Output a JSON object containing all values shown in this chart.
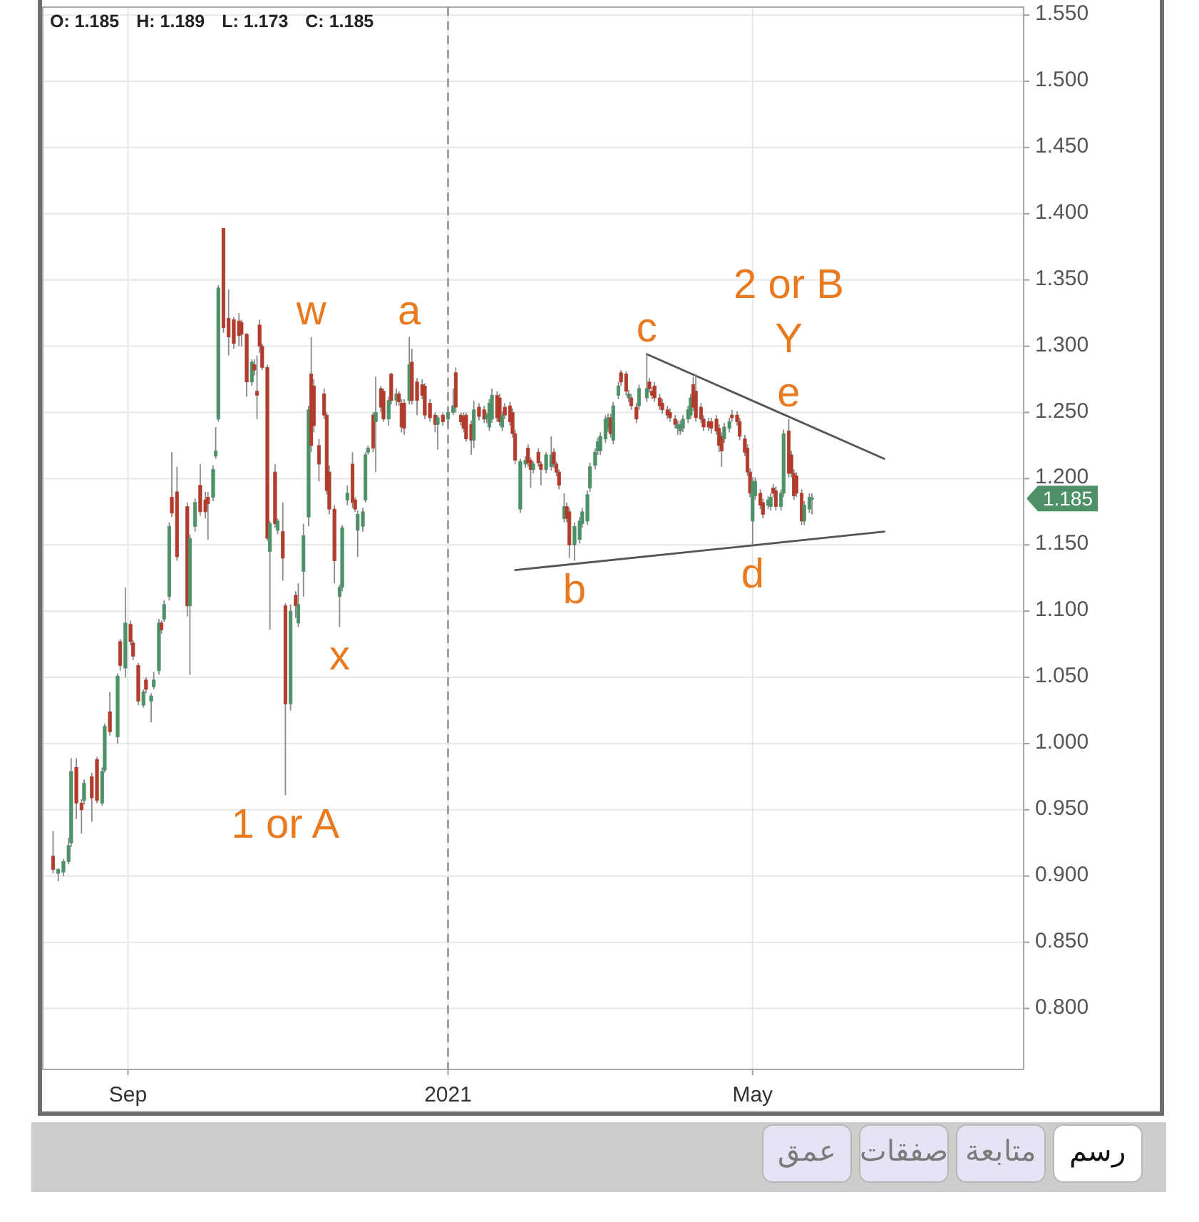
{
  "chart_data": {
    "type": "candlestick",
    "x": [
      "2020-08-03",
      "2020-08-05",
      "2020-08-07",
      "2020-08-09",
      "2020-08-10",
      "2020-08-12",
      "2020-08-14",
      "2020-08-15",
      "2020-08-18",
      "2020-08-20",
      "2020-08-22",
      "2020-08-23",
      "2020-08-25",
      "2020-08-28",
      "2020-08-29",
      "2020-08-31",
      "2020-09-02",
      "2020-09-03",
      "2020-09-05",
      "2020-09-07",
      "2020-09-08",
      "2020-09-10",
      "2020-09-11",
      "2020-09-13",
      "2020-09-14",
      "2020-09-15",
      "2020-09-17",
      "2020-09-18",
      "2020-09-20",
      "2020-09-24",
      "2020-09-25",
      "2020-09-27",
      "2020-09-29",
      "2020-10-01",
      "2020-10-02",
      "2020-10-04",
      "2020-10-05",
      "2020-10-06",
      "2020-10-08",
      "2020-10-10",
      "2020-10-12",
      "2020-10-14",
      "2020-10-15",
      "2020-10-17",
      "2020-10-19",
      "2020-10-20",
      "2020-10-21",
      "2020-10-22",
      "2020-10-23",
      "2020-10-25",
      "2020-10-26",
      "2020-10-28",
      "2020-10-29",
      "2020-10-31",
      "2020-11-01",
      "2020-11-03",
      "2020-11-05",
      "2020-11-06",
      "2020-11-08",
      "2020-11-10",
      "2020-11-11",
      "2020-11-12",
      "2020-11-14",
      "2020-11-16",
      "2020-11-17",
      "2020-11-18",
      "2020-11-20",
      "2020-11-22",
      "2020-11-23",
      "2020-11-25",
      "2020-11-27",
      "2020-11-28",
      "2020-11-29",
      "2020-12-01",
      "2020-12-02",
      "2020-12-03",
      "2020-12-05",
      "2020-12-06",
      "2020-12-08",
      "2020-12-09",
      "2020-12-11",
      "2020-12-12",
      "2020-12-14",
      "2020-12-15",
      "2020-12-16",
      "2020-12-17",
      "2020-12-19",
      "2020-12-20",
      "2020-12-22",
      "2020-12-24",
      "2020-12-25",
      "2020-12-27",
      "2020-12-29",
      "2020-12-30",
      "2021-01-01",
      "2021-01-03",
      "2021-01-05",
      "2021-01-06",
      "2021-01-08",
      "2021-01-09",
      "2021-01-10",
      "2021-01-12",
      "2021-01-13",
      "2021-01-15",
      "2021-01-17",
      "2021-01-18",
      "2021-01-19",
      "2021-01-20",
      "2021-01-22",
      "2021-01-23",
      "2021-01-24",
      "2021-01-25",
      "2021-01-27",
      "2021-01-28",
      "2021-01-29",
      "2021-01-31",
      "2021-02-02",
      "2021-02-03",
      "2021-02-04",
      "2021-02-05",
      "2021-02-07",
      "2021-02-08",
      "2021-02-10",
      "2021-02-12",
      "2021-02-13",
      "2021-02-14",
      "2021-02-15",
      "2021-02-17",
      "2021-02-18",
      "2021-02-19",
      "2021-02-21",
      "2021-02-23",
      "2021-02-24",
      "2021-02-26",
      "2021-02-27",
      "2021-03-01",
      "2021-03-02",
      "2021-03-03",
      "2021-03-05",
      "2021-03-06",
      "2021-03-07",
      "2021-03-08",
      "2021-03-10",
      "2021-03-11",
      "2021-03-13",
      "2021-03-14",
      "2021-03-15",
      "2021-03-17",
      "2021-03-18",
      "2021-03-21",
      "2021-03-22",
      "2021-03-23",
      "2021-03-24",
      "2021-03-26",
      "2021-03-27",
      "2021-03-29",
      "2021-03-30",
      "2021-04-01",
      "2021-04-02",
      "2021-04-03",
      "2021-04-04",
      "2021-04-06",
      "2021-04-07",
      "2021-04-08",
      "2021-04-09",
      "2021-04-11",
      "2021-04-12",
      "2021-04-14",
      "2021-04-15",
      "2021-04-17",
      "2021-04-18",
      "2021-04-19",
      "2021-04-20",
      "2021-04-22",
      "2021-04-23",
      "2021-04-25",
      "2021-04-26",
      "2021-04-28",
      "2021-04-29",
      "2021-04-30",
      "2021-05-01",
      "2021-05-02",
      "2021-05-04",
      "2021-05-05",
      "2021-05-07",
      "2021-05-08",
      "2021-05-09",
      "2021-05-10",
      "2021-05-12",
      "2021-05-13",
      "2021-05-15",
      "2021-05-16",
      "2021-05-17",
      "2021-05-18",
      "2021-05-20",
      "2021-05-21",
      "2021-05-23",
      "2021-05-24"
    ],
    "ohlc": [
      [
        0.915,
        0.934,
        0.902,
        0.905
      ],
      [
        0.902,
        0.906,
        0.896,
        0.905
      ],
      [
        0.903,
        0.913,
        0.9,
        0.911
      ],
      [
        0.911,
        0.929,
        0.909,
        0.923
      ],
      [
        0.925,
        0.989,
        0.922,
        0.979
      ],
      [
        0.982,
        0.989,
        0.943,
        0.955
      ],
      [
        0.955,
        0.958,
        0.932,
        0.95
      ],
      [
        0.957,
        0.973,
        0.954,
        0.97
      ],
      [
        0.975,
        0.978,
        0.941,
        0.959
      ],
      [
        0.988,
        0.99,
        0.955,
        0.957
      ],
      [
        0.955,
        0.982,
        0.953,
        0.979
      ],
      [
        0.98,
        1.015,
        0.978,
        1.013
      ],
      [
        1.024,
        1.039,
        1.006,
        1.009
      ],
      [
        1.005,
        1.053,
        1.0,
        1.051
      ],
      [
        1.077,
        1.079,
        1.055,
        1.059
      ],
      [
        1.057,
        1.118,
        1.05,
        1.091
      ],
      [
        1.09,
        1.093,
        1.074,
        1.077
      ],
      [
        1.076,
        1.078,
        1.063,
        1.066
      ],
      [
        1.059,
        1.061,
        1.029,
        1.032
      ],
      [
        1.029,
        1.041,
        1.027,
        1.039
      ],
      [
        1.048,
        1.05,
        1.038,
        1.041
      ],
      [
        1.032,
        1.038,
        1.016,
        1.036
      ],
      [
        1.043,
        1.054,
        1.041,
        1.048
      ],
      [
        1.055,
        1.094,
        1.052,
        1.091
      ],
      [
        1.091,
        1.093,
        1.083,
        1.086
      ],
      [
        1.094,
        1.108,
        1.092,
        1.105
      ],
      [
        1.111,
        1.167,
        1.108,
        1.164
      ],
      [
        1.186,
        1.22,
        1.171,
        1.174
      ],
      [
        1.19,
        1.209,
        1.138,
        1.141
      ],
      [
        1.179,
        1.182,
        1.096,
        1.104
      ],
      [
        1.104,
        1.158,
        1.052,
        1.155
      ],
      [
        1.164,
        1.185,
        1.16,
        1.182
      ],
      [
        1.195,
        1.211,
        1.172,
        1.175
      ],
      [
        1.184,
        1.19,
        1.17,
        1.175
      ],
      [
        1.186,
        1.19,
        1.154,
        1.181
      ],
      [
        1.186,
        1.21,
        1.183,
        1.207
      ],
      [
        1.217,
        1.239,
        1.215,
        1.221
      ],
      [
        1.245,
        1.346,
        1.243,
        1.344
      ],
      [
        1.389,
        1.389,
        1.31,
        1.314
      ],
      [
        1.321,
        1.343,
        1.293,
        1.307
      ],
      [
        1.32,
        1.322,
        1.298,
        1.302
      ],
      [
        1.319,
        1.325,
        1.3,
        1.308
      ],
      [
        1.318,
        1.32,
        1.3,
        1.309
      ],
      [
        1.309,
        1.31,
        1.262,
        1.273
      ],
      [
        1.273,
        1.29,
        1.27,
        1.288
      ],
      [
        1.286,
        1.29,
        1.278,
        1.282
      ],
      [
        1.266,
        1.293,
        1.245,
        1.263
      ],
      [
        1.316,
        1.32,
        1.295,
        1.3
      ],
      [
        1.3,
        1.302,
        1.282,
        1.284
      ],
      [
        1.284,
        1.286,
        1.153,
        1.155
      ],
      [
        1.145,
        1.168,
        1.086,
        1.166
      ],
      [
        1.205,
        1.211,
        1.163,
        1.166
      ],
      [
        1.161,
        1.17,
        1.158,
        1.168
      ],
      [
        1.16,
        1.182,
        1.123,
        1.14
      ],
      [
        1.104,
        1.106,
        0.961,
        1.03
      ],
      [
        1.03,
        1.105,
        1.025,
        1.1
      ],
      [
        1.112,
        1.115,
        1.095,
        1.104
      ],
      [
        1.091,
        1.121,
        1.088,
        1.105
      ],
      [
        1.13,
        1.166,
        1.111,
        1.157
      ],
      [
        1.171,
        1.255,
        1.164,
        1.252
      ],
      [
        1.279,
        1.307,
        1.22,
        1.225
      ],
      [
        1.27,
        1.275,
        1.235,
        1.24
      ],
      [
        1.225,
        1.23,
        1.198,
        1.211
      ],
      [
        1.264,
        1.268,
        1.245,
        1.248
      ],
      [
        1.248,
        1.25,
        1.188,
        1.191
      ],
      [
        1.205,
        1.21,
        1.173,
        1.177
      ],
      [
        1.177,
        1.18,
        1.121,
        1.138
      ],
      [
        1.111,
        1.12,
        1.088,
        1.118
      ],
      [
        1.118,
        1.165,
        1.115,
        1.163
      ],
      [
        1.184,
        1.195,
        1.18,
        1.189
      ],
      [
        1.211,
        1.22,
        1.178,
        1.182
      ],
      [
        1.184,
        1.186,
        1.175,
        1.177
      ],
      [
        1.161,
        1.176,
        1.141,
        1.173
      ],
      [
        1.164,
        1.178,
        1.16,
        1.175
      ],
      [
        1.184,
        1.22,
        1.182,
        1.218
      ],
      [
        1.22,
        1.225,
        1.218,
        1.223
      ],
      [
        1.248,
        1.25,
        1.22,
        1.223
      ],
      [
        1.243,
        1.277,
        1.205,
        1.25
      ],
      [
        1.268,
        1.27,
        1.25,
        1.254
      ],
      [
        1.266,
        1.268,
        1.243,
        1.245
      ],
      [
        1.245,
        1.262,
        1.24,
        1.259
      ],
      [
        1.279,
        1.28,
        1.256,
        1.259
      ],
      [
        1.259,
        1.268,
        1.255,
        1.264
      ],
      [
        1.264,
        1.266,
        1.255,
        1.258
      ],
      [
        1.257,
        1.26,
        1.235,
        1.239
      ],
      [
        1.257,
        1.26,
        1.233,
        1.238
      ],
      [
        1.259,
        1.307,
        1.256,
        1.286
      ],
      [
        1.288,
        1.298,
        1.256,
        1.259
      ],
      [
        1.273,
        1.276,
        1.248,
        1.259
      ],
      [
        1.271,
        1.275,
        1.26,
        1.263
      ],
      [
        1.27,
        1.272,
        1.245,
        1.248
      ],
      [
        1.257,
        1.26,
        1.243,
        1.246
      ],
      [
        1.248,
        1.25,
        1.235,
        1.241
      ],
      [
        1.241,
        1.248,
        1.222,
        1.246
      ],
      [
        1.248,
        1.25,
        1.24,
        1.243
      ],
      [
        1.245,
        1.252,
        1.242,
        1.25
      ],
      [
        1.25,
        1.268,
        1.248,
        1.255
      ],
      [
        1.28,
        1.284,
        1.25,
        1.254
      ],
      [
        1.248,
        1.25,
        1.24,
        1.243
      ],
      [
        1.247,
        1.25,
        1.235,
        1.238
      ],
      [
        1.248,
        1.25,
        1.228,
        1.23
      ],
      [
        1.241,
        1.244,
        1.218,
        1.229
      ],
      [
        1.229,
        1.259,
        1.223,
        1.252
      ],
      [
        1.254,
        1.257,
        1.244,
        1.247
      ],
      [
        1.252,
        1.255,
        1.242,
        1.245
      ],
      [
        1.245,
        1.25,
        1.242,
        1.248
      ],
      [
        1.239,
        1.26,
        1.236,
        1.257
      ],
      [
        1.245,
        1.268,
        1.242,
        1.263
      ],
      [
        1.263,
        1.266,
        1.243,
        1.246
      ],
      [
        1.261,
        1.264,
        1.24,
        1.243
      ],
      [
        1.239,
        1.251,
        1.236,
        1.248
      ],
      [
        1.254,
        1.257,
        1.245,
        1.248
      ],
      [
        1.255,
        1.258,
        1.24,
        1.243
      ],
      [
        1.25,
        1.253,
        1.231,
        1.234
      ],
      [
        1.234,
        1.237,
        1.211,
        1.214
      ],
      [
        1.177,
        1.215,
        1.174,
        1.213
      ],
      [
        1.211,
        1.217,
        1.208,
        1.214
      ],
      [
        1.223,
        1.226,
        1.209,
        1.212
      ],
      [
        1.214,
        1.216,
        1.193,
        1.207
      ],
      [
        1.207,
        1.213,
        1.204,
        1.211
      ],
      [
        1.22,
        1.223,
        1.209,
        1.212
      ],
      [
        1.211,
        1.213,
        1.195,
        1.207
      ],
      [
        1.207,
        1.22,
        1.204,
        1.218
      ],
      [
        1.209,
        1.232,
        1.206,
        1.218
      ],
      [
        1.22,
        1.223,
        1.208,
        1.211
      ],
      [
        1.211,
        1.213,
        1.202,
        1.205
      ],
      [
        1.205,
        1.207,
        1.192,
        1.195
      ],
      [
        1.17,
        1.189,
        1.167,
        1.179
      ],
      [
        1.179,
        1.182,
        1.167,
        1.17
      ],
      [
        1.175,
        1.178,
        1.14,
        1.15
      ],
      [
        1.15,
        1.167,
        1.138,
        1.164
      ],
      [
        1.154,
        1.171,
        1.151,
        1.168
      ],
      [
        1.166,
        1.178,
        1.163,
        1.175
      ],
      [
        1.168,
        1.191,
        1.165,
        1.188
      ],
      [
        1.193,
        1.212,
        1.19,
        1.209
      ],
      [
        1.21,
        1.223,
        1.207,
        1.22
      ],
      [
        1.221,
        1.231,
        1.218,
        1.228
      ],
      [
        1.221,
        1.235,
        1.218,
        1.232
      ],
      [
        1.23,
        1.248,
        1.227,
        1.245
      ],
      [
        1.238,
        1.249,
        1.235,
        1.246
      ],
      [
        1.246,
        1.249,
        1.231,
        1.234
      ],
      [
        1.229,
        1.258,
        1.226,
        1.255
      ],
      [
        1.263,
        1.273,
        1.26,
        1.27
      ],
      [
        1.28,
        1.282,
        1.27,
        1.273
      ],
      [
        1.279,
        1.281,
        1.263,
        1.266
      ],
      [
        1.261,
        1.267,
        1.258,
        1.264
      ],
      [
        1.261,
        1.264,
        1.252,
        1.255
      ],
      [
        1.254,
        1.257,
        1.242,
        1.245
      ],
      [
        1.255,
        1.271,
        1.252,
        1.268
      ],
      [
        1.261,
        1.294,
        1.258,
        1.268
      ],
      [
        1.273,
        1.276,
        1.265,
        1.268
      ],
      [
        1.266,
        1.269,
        1.26,
        1.263
      ],
      [
        1.27,
        1.273,
        1.258,
        1.261
      ],
      [
        1.261,
        1.264,
        1.252,
        1.255
      ],
      [
        1.257,
        1.26,
        1.249,
        1.252
      ],
      [
        1.252,
        1.255,
        1.245,
        1.248
      ],
      [
        1.25,
        1.253,
        1.243,
        1.246
      ],
      [
        1.245,
        1.248,
        1.238,
        1.241
      ],
      [
        1.238,
        1.244,
        1.233,
        1.241
      ],
      [
        1.236,
        1.244,
        1.233,
        1.241
      ],
      [
        1.238,
        1.248,
        1.235,
        1.245
      ],
      [
        1.245,
        1.255,
        1.242,
        1.252
      ],
      [
        1.248,
        1.264,
        1.245,
        1.261
      ],
      [
        1.271,
        1.277,
        1.251,
        1.254
      ],
      [
        1.266,
        1.279,
        1.243,
        1.246
      ],
      [
        1.254,
        1.257,
        1.242,
        1.245
      ],
      [
        1.245,
        1.248,
        1.236,
        1.239
      ],
      [
        1.243,
        1.246,
        1.236,
        1.239
      ],
      [
        1.243,
        1.246,
        1.234,
        1.238
      ],
      [
        1.245,
        1.248,
        1.233,
        1.236
      ],
      [
        1.238,
        1.241,
        1.22,
        1.225
      ],
      [
        1.232,
        1.235,
        1.209,
        1.221
      ],
      [
        1.23,
        1.242,
        1.227,
        1.239
      ],
      [
        1.238,
        1.246,
        1.235,
        1.243
      ],
      [
        1.248,
        1.252,
        1.243,
        1.246
      ],
      [
        1.248,
        1.251,
        1.24,
        1.243
      ],
      [
        1.243,
        1.246,
        1.229,
        1.232
      ],
      [
        1.23,
        1.233,
        1.217,
        1.22
      ],
      [
        1.223,
        1.226,
        1.202,
        1.205
      ],
      [
        1.205,
        1.208,
        1.186,
        1.189
      ],
      [
        1.168,
        1.201,
        1.15,
        1.198
      ],
      [
        1.187,
        1.201,
        1.184,
        1.198
      ],
      [
        1.189,
        1.192,
        1.177,
        1.18
      ],
      [
        1.182,
        1.185,
        1.17,
        1.173
      ],
      [
        1.18,
        1.187,
        1.177,
        1.184
      ],
      [
        1.179,
        1.189,
        1.176,
        1.186
      ],
      [
        1.193,
        1.196,
        1.186,
        1.189
      ],
      [
        1.191,
        1.194,
        1.176,
        1.179
      ],
      [
        1.179,
        1.192,
        1.176,
        1.189
      ],
      [
        1.189,
        1.237,
        1.186,
        1.234
      ],
      [
        1.236,
        1.245,
        1.201,
        1.204
      ],
      [
        1.218,
        1.221,
        1.201,
        1.204
      ],
      [
        1.204,
        1.207,
        1.184,
        1.187
      ],
      [
        1.202,
        1.205,
        1.186,
        1.189
      ],
      [
        1.189,
        1.192,
        1.165,
        1.168
      ],
      [
        1.168,
        1.183,
        1.165,
        1.18
      ],
      [
        1.177,
        1.189,
        1.174,
        1.186
      ],
      [
        1.185,
        1.189,
        1.173,
        1.185
      ]
    ],
    "colors": [
      "#b13c2c",
      "#4e9168",
      "#4e9168",
      "#4e9168",
      "#4e9168",
      "#b13c2c",
      "#b13c2c",
      "#4e9168",
      "#b13c2c",
      "#b13c2c",
      "#4e9168",
      "#4e9168",
      "#b13c2c",
      "#4e9168",
      "#b13c2c",
      "#4e9168",
      "#b13c2c",
      "#b13c2c",
      "#b13c2c",
      "#4e9168",
      "#b13c2c",
      "#4e9168",
      "#4e9168",
      "#4e9168",
      "#b13c2c",
      "#4e9168",
      "#4e9168",
      "#b13c2c",
      "#b13c2c",
      "#b13c2c",
      "#4e9168",
      "#4e9168",
      "#b13c2c",
      "#b13c2c",
      "#b13c2c",
      "#4e9168",
      "#4e9168",
      "#4e9168",
      "#b13c2c",
      "#b13c2c",
      "#b13c2c",
      "#b13c2c",
      "#b13c2c",
      "#b13c2c",
      "#4e9168",
      "#b13c2c",
      "#b13c2c",
      "#b13c2c",
      "#b13c2c",
      "#b13c2c",
      "#4e9168",
      "#b13c2c",
      "#4e9168",
      "#b13c2c",
      "#b13c2c",
      "#4e9168",
      "#b13c2c",
      "#4e9168",
      "#4e9168",
      "#4e9168",
      "#b13c2c",
      "#b13c2c",
      "#b13c2c",
      "#b13c2c",
      "#b13c2c",
      "#b13c2c",
      "#b13c2c",
      "#4e9168",
      "#4e9168",
      "#4e9168",
      "#b13c2c",
      "#b13c2c",
      "#4e9168",
      "#4e9168",
      "#4e9168",
      "#4e9168",
      "#b13c2c",
      "#4e9168",
      "#b13c2c",
      "#b13c2c",
      "#4e9168",
      "#b13c2c",
      "#4e9168",
      "#b13c2c",
      "#b13c2c",
      "#b13c2c",
      "#4e9168",
      "#b13c2c",
      "#b13c2c",
      "#b13c2c",
      "#b13c2c",
      "#b13c2c",
      "#b13c2c",
      "#4e9168",
      "#b13c2c",
      "#4e9168",
      "#4e9168",
      "#b13c2c",
      "#b13c2c",
      "#b13c2c",
      "#b13c2c",
      "#b13c2c",
      "#4e9168",
      "#b13c2c",
      "#b13c2c",
      "#4e9168",
      "#4e9168",
      "#4e9168",
      "#b13c2c",
      "#b13c2c",
      "#4e9168",
      "#b13c2c",
      "#b13c2c",
      "#b13c2c",
      "#b13c2c",
      "#4e9168",
      "#4e9168",
      "#b13c2c",
      "#b13c2c",
      "#4e9168",
      "#b13c2c",
      "#b13c2c",
      "#4e9168",
      "#4e9168",
      "#b13c2c",
      "#b13c2c",
      "#b13c2c",
      "#4e9168",
      "#b13c2c",
      "#b13c2c",
      "#4e9168",
      "#4e9168",
      "#4e9168",
      "#4e9168",
      "#4e9168",
      "#4e9168",
      "#4e9168",
      "#4e9168",
      "#4e9168",
      "#4e9168",
      "#b13c2c",
      "#4e9168",
      "#4e9168",
      "#b13c2c",
      "#b13c2c",
      "#4e9168",
      "#b13c2c",
      "#b13c2c",
      "#4e9168",
      "#4e9168",
      "#b13c2c",
      "#b13c2c",
      "#b13c2c",
      "#b13c2c",
      "#b13c2c",
      "#b13c2c",
      "#b13c2c",
      "#b13c2c",
      "#4e9168",
      "#4e9168",
      "#4e9168",
      "#4e9168",
      "#4e9168",
      "#b13c2c",
      "#b13c2c",
      "#b13c2c",
      "#b13c2c",
      "#b13c2c",
      "#b13c2c",
      "#b13c2c",
      "#b13c2c",
      "#b13c2c",
      "#4e9168",
      "#4e9168",
      "#b13c2c",
      "#b13c2c",
      "#b13c2c",
      "#b13c2c",
      "#b13c2c",
      "#b13c2c",
      "#4e9168",
      "#4e9168",
      "#b13c2c",
      "#b13c2c",
      "#4e9168",
      "#4e9168",
      "#b13c2c",
      "#b13c2c",
      "#4e9168",
      "#4e9168",
      "#b13c2c",
      "#b13c2c",
      "#b13c2c",
      "#b13c2c",
      "#b13c2c",
      "#4e9168",
      "#4e9168",
      "#4e9168"
    ],
    "series": [
      {
        "type": "line",
        "x": [
          "2021-03-21",
          "2021-06-21"
        ],
        "values": [
          1.294,
          1.215
        ],
        "color": "#555555"
      },
      {
        "type": "line",
        "x": [
          "2021-01-29",
          "2021-06-21"
        ],
        "values": [
          1.131,
          1.16
        ],
        "color": "#555555"
      }
    ],
    "ref_lines": [
      {
        "axis": "x",
        "value": "2021-01-03",
        "color": "#8c8c8c",
        "line_style": "dashed"
      }
    ],
    "xlim": [
      "2020-07-30",
      "2021-08-14"
    ],
    "xticks": [
      {
        "value": "2020-09-01",
        "label": "Sep"
      },
      {
        "value": "2021-01-03",
        "label": "2021"
      },
      {
        "value": "2021-05-01",
        "label": "May"
      }
    ],
    "ylim": [
      0.754,
      1.556
    ],
    "yticks": [
      {
        "value": 0.8,
        "label": "0.800"
      },
      {
        "value": 0.85,
        "label": "0.850"
      },
      {
        "value": 0.9,
        "label": "0.900"
      },
      {
        "value": 0.95,
        "label": "0.950"
      },
      {
        "value": 1.0,
        "label": "1.000"
      },
      {
        "value": 1.05,
        "label": "1.050"
      },
      {
        "value": 1.1,
        "label": "1.100"
      },
      {
        "value": 1.15,
        "label": "1.150"
      },
      {
        "value": 1.2,
        "label": "1.200"
      },
      {
        "value": 1.25,
        "label": "1.250"
      },
      {
        "value": 1.3,
        "label": "1.300"
      },
      {
        "value": 1.35,
        "label": "1.350"
      },
      {
        "value": 1.4,
        "label": "1.400"
      },
      {
        "value": 1.45,
        "label": "1.450"
      },
      {
        "value": 1.5,
        "label": "1.500"
      },
      {
        "value": 1.55,
        "label": "1.550"
      }
    ],
    "grid": true,
    "annotations": [
      "O: 1.185",
      "H: 1.189",
      "L: 1.173",
      "C: 1.185",
      "رسم",
      "متابعة",
      "صفقات",
      "عمق",
      "1.185",
      {
        "text": "w",
        "x": "2020-11-11",
        "y": 1.307
      },
      {
        "text": "a",
        "x": "2020-12-19",
        "y": 1.307
      },
      {
        "text": "c",
        "x": "2021-03-21",
        "y": 1.294
      },
      {
        "text": "2 or B",
        "x": "2021-05-15",
        "y": 1.245
      },
      {
        "text": "Y",
        "x": "2021-05-15",
        "y": 1.245
      },
      {
        "text": "e",
        "x": "2021-05-15",
        "y": 1.245
      },
      {
        "text": "x",
        "x": "2020-11-22",
        "y": 1.088
      },
      {
        "text": "b",
        "x": "2021-02-21",
        "y": 1.138
      },
      {
        "text": "d",
        "x": "2021-05-01",
        "y": 1.15
      },
      {
        "text": "1 or A",
        "x": "2020-11-01",
        "y": 0.961
      }
    ]
  }
}
